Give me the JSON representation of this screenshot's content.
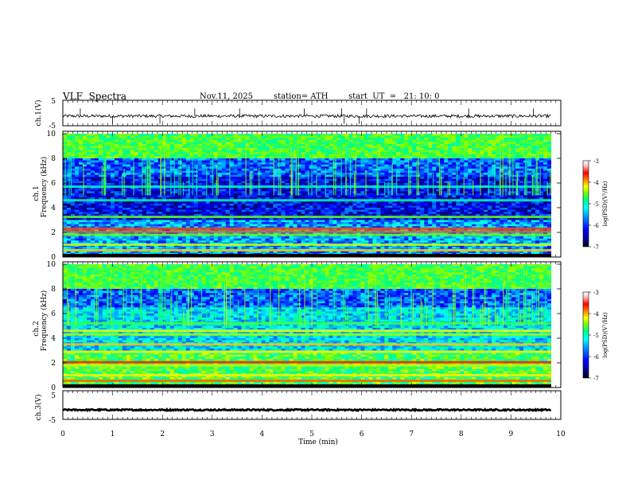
{
  "header": {
    "title": "VLF  Spectra",
    "date": "Nov.11, 2025",
    "station": "station= ATH",
    "start_ut": "start  UT  =   21: 10: 0"
  },
  "colors": {
    "background": "#ffffff",
    "trace": "#000000",
    "colormap": [
      "#000000",
      "#00007f",
      "#0000ff",
      "#0080ff",
      "#00ffff",
      "#00ff80",
      "#80ff00",
      "#ffff00",
      "#ff8000",
      "#ff0000",
      "#ffc0c0",
      "#ffffff"
    ]
  },
  "chart_data": [
    {
      "type": "line",
      "id": "ch1-waveform",
      "ylabel": "ch.1(V)",
      "ylim": [
        -5,
        5
      ],
      "yticks": [
        "5",
        "-5"
      ],
      "xlim": [
        0,
        10
      ],
      "baseline": -1.2,
      "noise_amplitude": 0.6,
      "spikes": [
        0.35,
        1.0,
        1.95,
        2.65,
        3.55,
        4.85,
        5.6,
        5.65,
        5.95,
        6.1,
        8.15,
        9.45
      ],
      "grid": false
    },
    {
      "type": "heatmap",
      "id": "ch1-spectrogram",
      "ylabel": "ch.1\nFrequency (kHz)",
      "ylabel_lines": [
        "ch.1",
        "Frequency (kHz)"
      ],
      "ylim": [
        0,
        10
      ],
      "yticks": [
        "0",
        "2",
        "4",
        "6",
        "8",
        "10"
      ],
      "xlim": [
        0,
        9.8
      ],
      "colorbar": {
        "label": "log(PSD)(V²/Hz)",
        "range": [
          -7,
          -3
        ],
        "ticks": [
          "-3",
          "-4",
          "-5",
          "-6",
          "-7"
        ]
      },
      "bands_khz": [
        {
          "f": 0.1,
          "level": -3.6
        },
        {
          "f": 0.55,
          "level": -4.3
        },
        {
          "f": 1.0,
          "level": -4.6
        },
        {
          "f": 1.8,
          "level": -4.9
        },
        {
          "f": 2.05,
          "level": -4.0
        },
        {
          "f": 2.3,
          "level": -3.9
        },
        {
          "f": 3.25,
          "level": -4.9
        },
        {
          "f": 4.6,
          "level": -5.3
        },
        {
          "f": 5.7,
          "level": -5.4
        }
      ]
    },
    {
      "type": "heatmap",
      "id": "ch2-spectrogram",
      "ylabel": "ch.2\nFrequency (kHz)",
      "ylabel_lines": [
        "ch.2",
        "Frequency (kHz)"
      ],
      "ylim": [
        0,
        10
      ],
      "yticks": [
        "0",
        "2",
        "4",
        "6",
        "8",
        "10"
      ],
      "xlim": [
        0,
        9.8
      ],
      "colorbar": {
        "label": "log(PSD)(V²/Hz)",
        "range": [
          -7,
          -3
        ],
        "ticks": [
          "-3",
          "-4",
          "-5",
          "-6",
          "-7"
        ]
      },
      "bands_khz": [
        {
          "f": 0.1,
          "level": -3.6
        },
        {
          "f": 0.55,
          "level": -4.0
        },
        {
          "f": 1.0,
          "level": -4.4
        },
        {
          "f": 1.8,
          "level": -4.6
        },
        {
          "f": 2.05,
          "level": -3.8
        },
        {
          "f": 2.9,
          "level": -4.4
        },
        {
          "f": 3.5,
          "level": -4.3
        },
        {
          "f": 4.3,
          "level": -4.7
        },
        {
          "f": 4.6,
          "level": -4.5
        },
        {
          "f": 5.2,
          "level": -5.0
        }
      ]
    },
    {
      "type": "line",
      "id": "ch3-waveform",
      "ylabel": "ch.3(V)",
      "ylim": [
        -5,
        5
      ],
      "yticks": [
        "5",
        "-5"
      ],
      "xlim": [
        0,
        10
      ],
      "baseline": -1.7,
      "noise_amplitude": 0.25,
      "grid": false
    }
  ],
  "xaxis": {
    "label": "Time  (min)",
    "range": [
      0,
      10
    ],
    "ticks": [
      "0",
      "1",
      "2",
      "3",
      "4",
      "5",
      "6",
      "7",
      "8",
      "9",
      "10"
    ]
  }
}
